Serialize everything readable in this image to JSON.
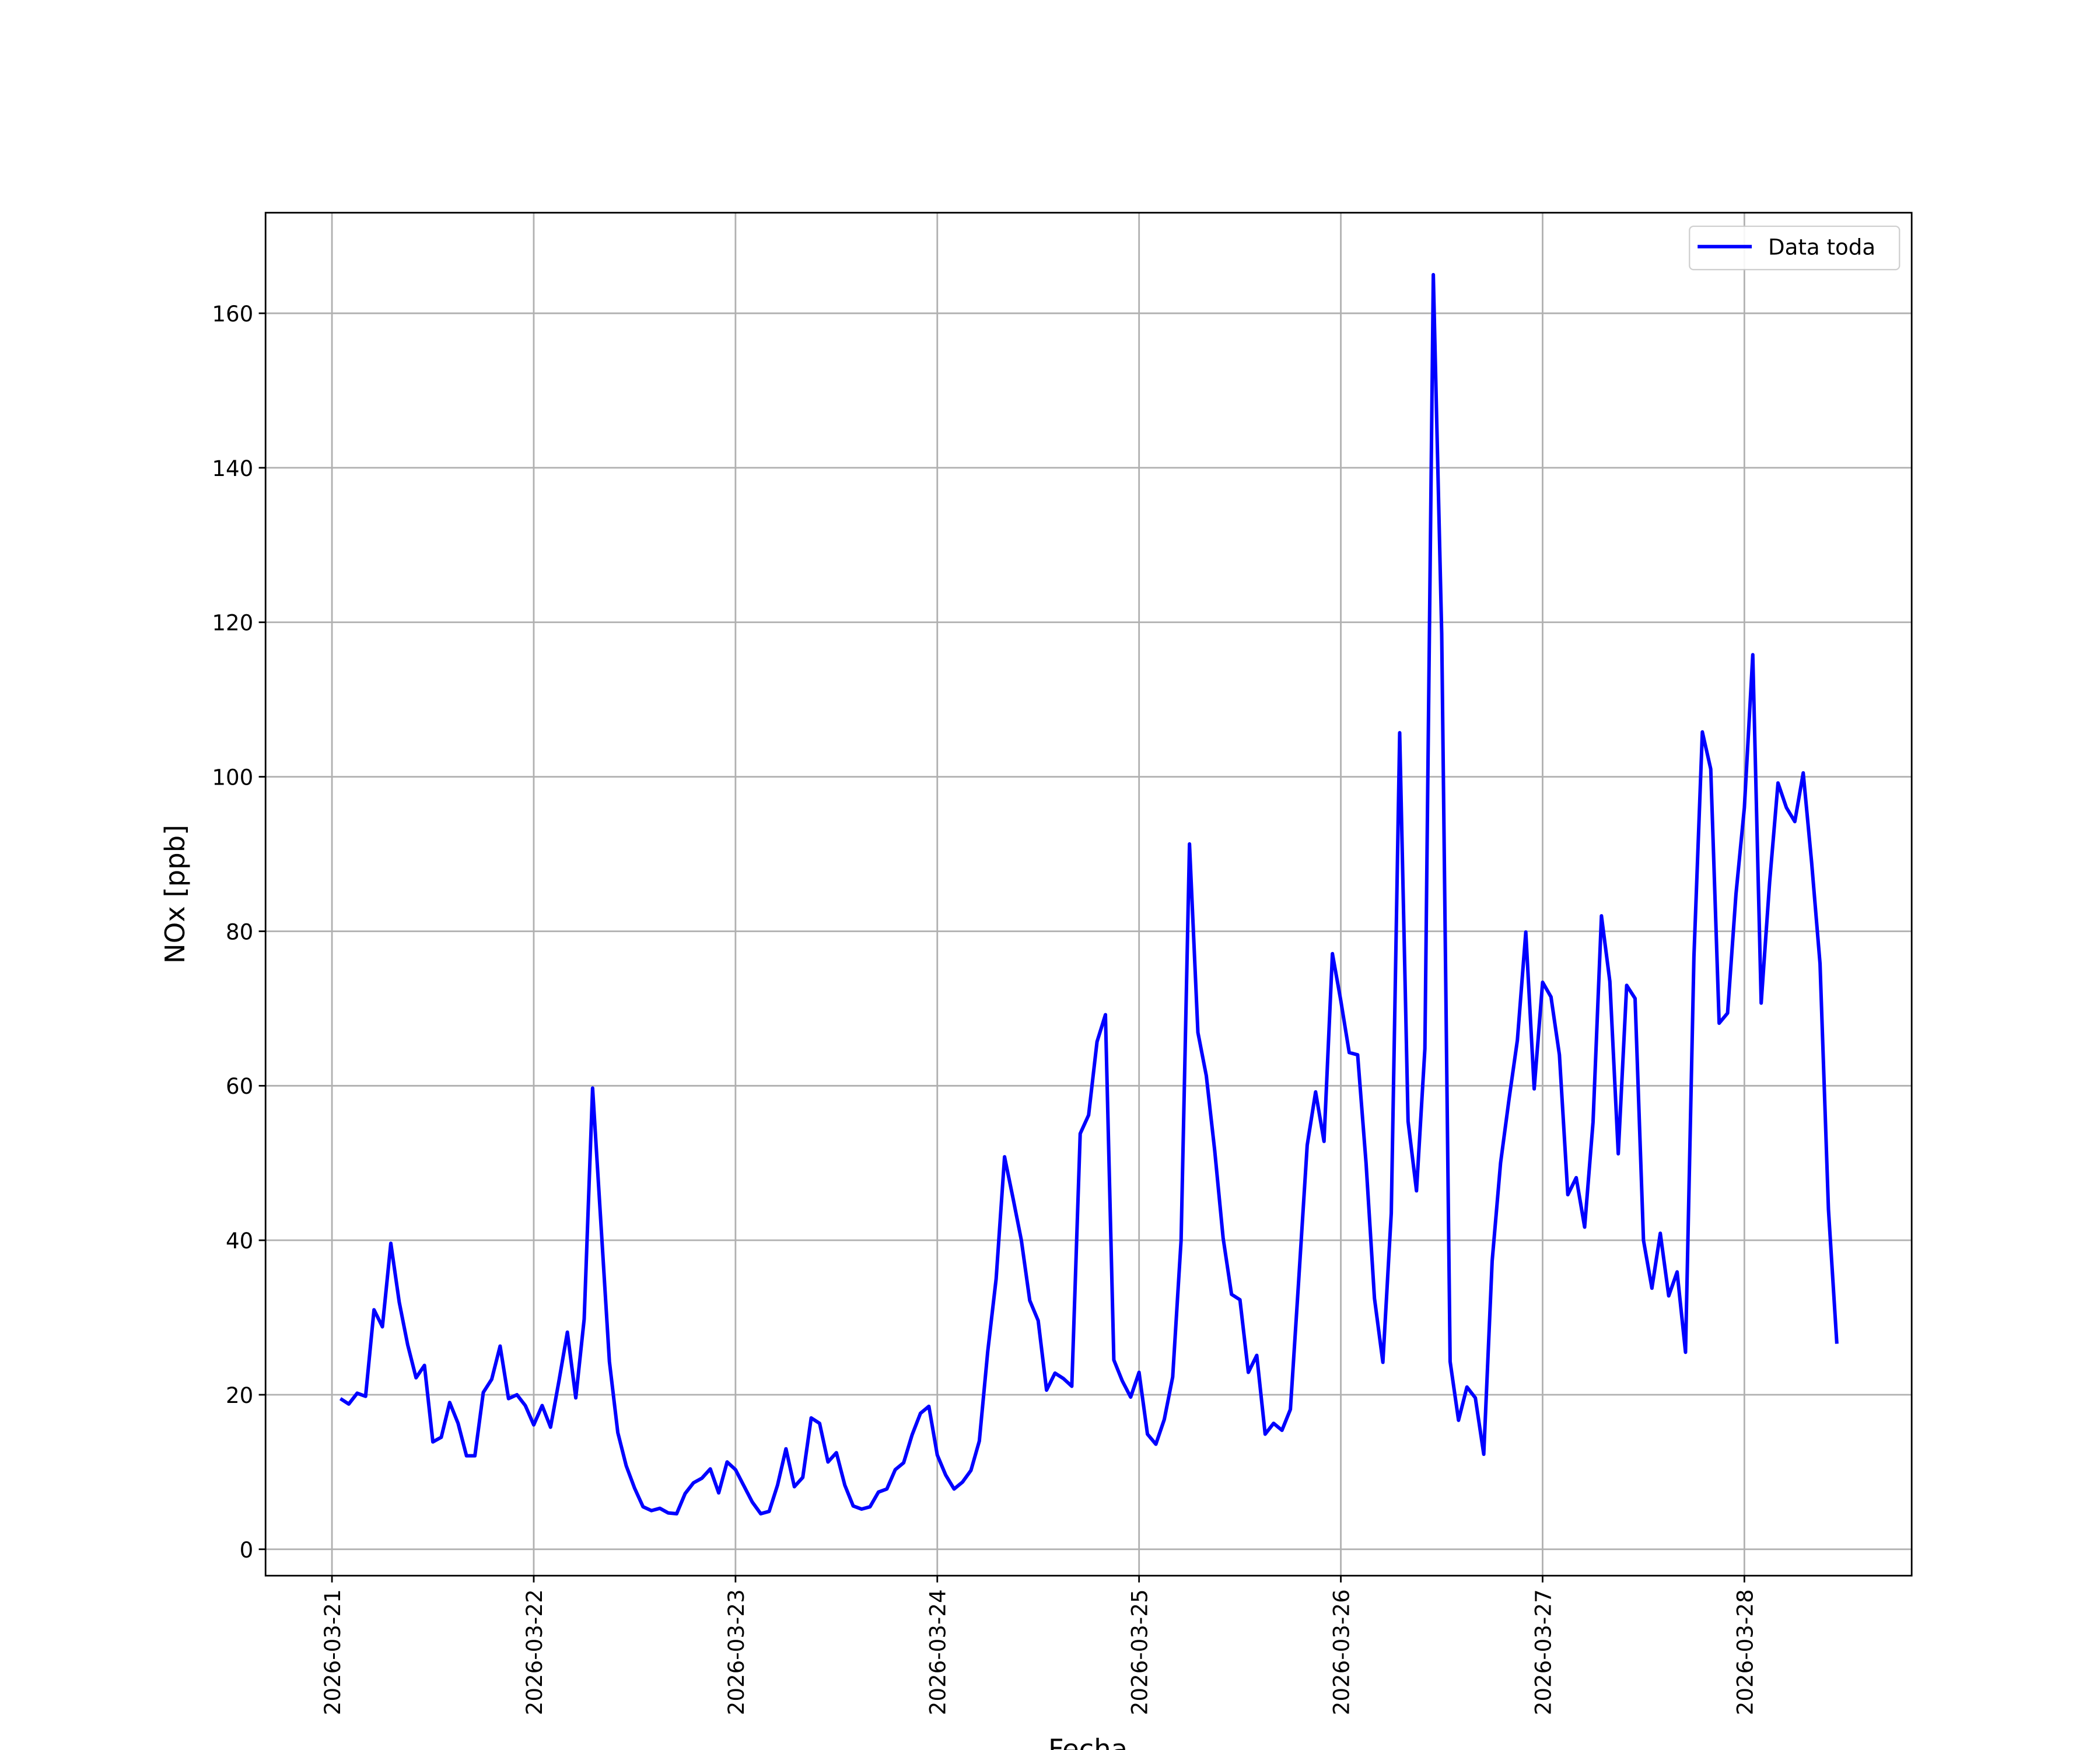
{
  "chart_data": {
    "type": "line",
    "xlabel": "Fecha",
    "ylabel": "NOx [ppb]",
    "x": [
      "2026-03-21 01:00",
      "2026-03-21 02:00",
      "2026-03-21 03:00",
      "2026-03-21 04:00",
      "2026-03-21 05:00",
      "2026-03-21 06:00",
      "2026-03-21 07:00",
      "2026-03-21 08:00",
      "2026-03-21 09:00",
      "2026-03-21 10:00",
      "2026-03-21 11:00",
      "2026-03-21 12:00",
      "2026-03-21 13:00",
      "2026-03-21 14:00",
      "2026-03-21 15:00",
      "2026-03-21 16:00",
      "2026-03-21 17:00",
      "2026-03-21 18:00",
      "2026-03-21 19:00",
      "2026-03-21 20:00",
      "2026-03-21 21:00",
      "2026-03-21 22:00",
      "2026-03-21 23:00",
      "2026-03-22 00:00",
      "2026-03-22 01:00",
      "2026-03-22 02:00",
      "2026-03-22 03:00",
      "2026-03-22 04:00",
      "2026-03-22 05:00",
      "2026-03-22 06:00",
      "2026-03-22 07:00",
      "2026-03-22 08:00",
      "2026-03-22 09:00",
      "2026-03-22 10:00",
      "2026-03-22 11:00",
      "2026-03-22 12:00",
      "2026-03-22 13:00",
      "2026-03-22 14:00",
      "2026-03-22 15:00",
      "2026-03-22 16:00",
      "2026-03-22 17:00",
      "2026-03-22 18:00",
      "2026-03-22 19:00",
      "2026-03-22 20:00",
      "2026-03-22 21:00",
      "2026-03-22 22:00",
      "2026-03-22 23:00",
      "2026-03-23 00:00",
      "2026-03-23 01:00",
      "2026-03-23 02:00",
      "2026-03-23 03:00",
      "2026-03-23 04:00",
      "2026-03-23 05:00",
      "2026-03-23 06:00",
      "2026-03-23 07:00",
      "2026-03-23 08:00",
      "2026-03-23 09:00",
      "2026-03-23 10:00",
      "2026-03-23 11:00",
      "2026-03-23 12:00",
      "2026-03-23 13:00",
      "2026-03-23 14:00",
      "2026-03-23 15:00",
      "2026-03-23 16:00",
      "2026-03-23 17:00",
      "2026-03-23 18:00",
      "2026-03-23 19:00",
      "2026-03-23 20:00",
      "2026-03-23 21:00",
      "2026-03-23 22:00",
      "2026-03-23 23:00",
      "2026-03-24 00:00",
      "2026-03-24 01:00",
      "2026-03-24 02:00",
      "2026-03-24 03:00",
      "2026-03-24 04:00",
      "2026-03-24 05:00",
      "2026-03-24 06:00",
      "2026-03-24 07:00",
      "2026-03-24 08:00",
      "2026-03-24 09:00",
      "2026-03-24 10:00",
      "2026-03-24 11:00",
      "2026-03-24 12:00",
      "2026-03-24 13:00",
      "2026-03-24 14:00",
      "2026-03-24 15:00",
      "2026-03-24 16:00",
      "2026-03-24 17:00",
      "2026-03-24 18:00",
      "2026-03-24 19:00",
      "2026-03-24 20:00",
      "2026-03-24 21:00",
      "2026-03-24 22:00",
      "2026-03-24 23:00",
      "2026-03-25 00:00",
      "2026-03-25 01:00",
      "2026-03-25 02:00",
      "2026-03-25 03:00",
      "2026-03-25 04:00",
      "2026-03-25 05:00",
      "2026-03-25 06:00",
      "2026-03-25 07:00",
      "2026-03-25 08:00",
      "2026-03-25 09:00",
      "2026-03-25 10:00",
      "2026-03-25 11:00",
      "2026-03-25 12:00",
      "2026-03-25 13:00",
      "2026-03-25 14:00",
      "2026-03-25 15:00",
      "2026-03-25 16:00",
      "2026-03-25 17:00",
      "2026-03-25 18:00",
      "2026-03-25 19:00",
      "2026-03-25 20:00",
      "2026-03-25 21:00",
      "2026-03-25 22:00",
      "2026-03-25 23:00",
      "2026-03-26 00:00",
      "2026-03-26 01:00",
      "2026-03-26 02:00",
      "2026-03-26 03:00",
      "2026-03-26 04:00",
      "2026-03-26 05:00",
      "2026-03-26 06:00",
      "2026-03-26 07:00",
      "2026-03-26 08:00",
      "2026-03-26 09:00",
      "2026-03-26 10:00",
      "2026-03-26 11:00",
      "2026-03-26 12:00",
      "2026-03-26 13:00",
      "2026-03-26 14:00",
      "2026-03-26 15:00",
      "2026-03-26 16:00",
      "2026-03-26 17:00",
      "2026-03-26 18:00",
      "2026-03-26 19:00",
      "2026-03-26 20:00",
      "2026-03-26 21:00",
      "2026-03-26 22:00",
      "2026-03-26 23:00",
      "2026-03-27 00:00",
      "2026-03-27 01:00",
      "2026-03-27 02:00",
      "2026-03-27 03:00",
      "2026-03-27 04:00",
      "2026-03-27 05:00",
      "2026-03-27 06:00",
      "2026-03-27 07:00",
      "2026-03-27 08:00",
      "2026-03-27 09:00",
      "2026-03-27 10:00",
      "2026-03-27 11:00",
      "2026-03-27 12:00",
      "2026-03-27 13:00",
      "2026-03-27 14:00",
      "2026-03-27 15:00",
      "2026-03-27 16:00",
      "2026-03-27 17:00",
      "2026-03-27 18:00",
      "2026-03-27 19:00",
      "2026-03-27 20:00",
      "2026-03-27 21:00",
      "2026-03-27 22:00",
      "2026-03-27 23:00",
      "2026-03-28 00:00",
      "2026-03-28 01:00",
      "2026-03-28 02:00",
      "2026-03-28 03:00",
      "2026-03-28 04:00",
      "2026-03-28 05:00",
      "2026-03-28 06:00",
      "2026-03-28 07:00",
      "2026-03-28 08:00",
      "2026-03-28 09:00",
      "2026-03-28 10:00",
      "2026-03-28 11:00"
    ],
    "series": [
      {
        "name": "Data toda",
        "color": "#0000ff",
        "values": [
          19.5,
          18.8,
          20.2,
          19.8,
          31,
          28.8,
          39.6,
          32,
          26.5,
          22.2,
          23.8,
          13.9,
          14.5,
          19,
          16.3,
          12.1,
          12.1,
          20.3,
          22,
          26.3,
          19.5,
          20,
          18.6,
          16.1,
          18.6,
          15.8,
          21.8,
          28.1,
          19.6,
          29.8,
          59.7,
          42,
          24.3,
          15.1,
          10.8,
          7.9,
          5.5,
          5,
          5.3,
          4.7,
          4.6,
          7.2,
          8.6,
          9.2,
          10.4,
          7.3,
          11.3,
          10.3,
          8.2,
          6.1,
          4.6,
          4.9,
          8.3,
          13,
          8.1,
          9.3,
          17,
          16.3,
          11.3,
          12.5,
          8.3,
          5.6,
          5.2,
          5.5,
          7.4,
          7.8,
          10.3,
          11.2,
          14.8,
          17.6,
          18.5,
          12.2,
          9.6,
          7.8,
          8.7,
          10.2,
          14,
          25.6,
          35,
          50.8,
          45.5,
          40,
          32.2,
          29.6,
          20.6,
          22.8,
          22.1,
          21.1,
          53.8,
          56.2,
          65.7,
          69.2,
          24.5,
          21.8,
          19.7,
          22.9,
          14.9,
          13.6,
          16.8,
          22.3,
          40,
          91.3,
          66.9,
          61.3,
          51.6,
          40.3,
          33,
          32.3,
          22.9,
          25.1,
          14.9,
          16.3,
          15.4,
          18.1,
          35,
          52.3,
          59.2,
          52.8,
          77.1,
          71,
          64.3,
          64,
          50,
          32.5,
          24.2,
          43.5,
          105.7,
          55.4,
          46.4,
          64.8,
          165,
          118.5,
          24.3,
          16.7,
          21,
          19.6,
          12.3,
          37.3,
          50,
          58.2,
          65.9,
          79.9,
          59.6,
          73.4,
          71.5,
          64,
          45.9,
          48.1,
          41.7,
          55.3,
          82,
          73.5,
          51.2,
          73,
          71.3,
          40,
          33.8,
          40.9,
          32.8,
          35.9,
          25.5,
          76.7,
          105.8,
          101,
          68.1,
          69.4,
          84.8,
          96,
          115.8,
          70.7,
          86.3,
          99.2,
          96,
          94.2,
          100.5,
          88.9,
          75.8,
          44,
          26.6
        ]
      }
    ],
    "xlim": [
      "2026-03-20 16:06",
      "2026-03-28 19:54"
    ],
    "xticks": [
      "2026-03-21",
      "2026-03-22",
      "2026-03-23",
      "2026-03-24",
      "2026-03-25",
      "2026-03-26",
      "2026-03-27",
      "2026-03-28"
    ],
    "ylim": [
      -3.42,
      173.02
    ],
    "yticks": [
      0,
      20,
      40,
      60,
      80,
      100,
      120,
      140,
      160
    ],
    "grid": true,
    "legend": "upper right"
  }
}
